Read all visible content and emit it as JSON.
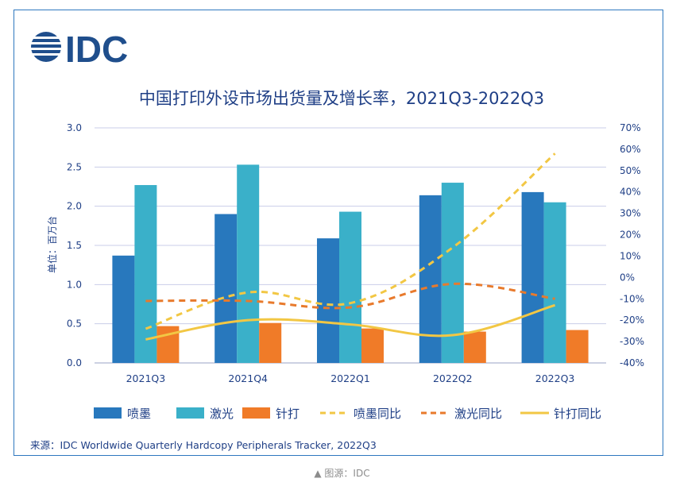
{
  "logo": {
    "text": "IDC",
    "color": "#1f4e8c"
  },
  "caption": "▲ 图源：IDC",
  "chart_data": {
    "type": "bar",
    "title": "中国打印外设市场出货量及增长率，2021Q3-2022Q3",
    "ylabel": "单位：百万台",
    "source": "来源：IDC Worldwide Quarterly Hardcopy Peripherals Tracker, 2022Q3",
    "categories": [
      "2021Q3",
      "2021Q4",
      "2022Q1",
      "2022Q2",
      "2022Q3"
    ],
    "ylim": [
      0,
      3.0
    ],
    "yticks": [
      "0.0",
      "0.5",
      "1.0",
      "1.5",
      "2.0",
      "2.5",
      "3.0"
    ],
    "y2lim": [
      -40,
      70
    ],
    "y2ticks": [
      "-40%",
      "-30%",
      "-20%",
      "-10%",
      "0%",
      "10%",
      "20%",
      "30%",
      "40%",
      "50%",
      "60%",
      "70%"
    ],
    "grid": true,
    "legend_position": "bottom",
    "series": [
      {
        "name": "喷墨",
        "kind": "bar",
        "axis": "left",
        "color": "#2878bd",
        "values": [
          1.37,
          1.9,
          1.59,
          2.14,
          2.18
        ]
      },
      {
        "name": "激光",
        "kind": "bar",
        "axis": "left",
        "color": "#3ab0c9",
        "values": [
          2.27,
          2.53,
          1.93,
          2.3,
          2.05
        ]
      },
      {
        "name": "针打",
        "kind": "bar",
        "axis": "left",
        "color": "#f07b28",
        "values": [
          0.47,
          0.51,
          0.44,
          0.4,
          0.42
        ]
      },
      {
        "name": "喷墨同比",
        "kind": "line",
        "style": "dashed",
        "axis": "right",
        "color": "#f2c744",
        "values": [
          -24,
          -7,
          -12,
          14,
          58
        ]
      },
      {
        "name": "激光同比",
        "kind": "line",
        "style": "dashed",
        "axis": "right",
        "color": "#e87a2c",
        "values": [
          -11,
          -11,
          -14,
          -3,
          -10
        ]
      },
      {
        "name": "针打同比",
        "kind": "line",
        "style": "solid",
        "axis": "right",
        "color": "#f2c744",
        "values": [
          -29,
          -20,
          -22,
          -27,
          -13
        ]
      }
    ]
  }
}
